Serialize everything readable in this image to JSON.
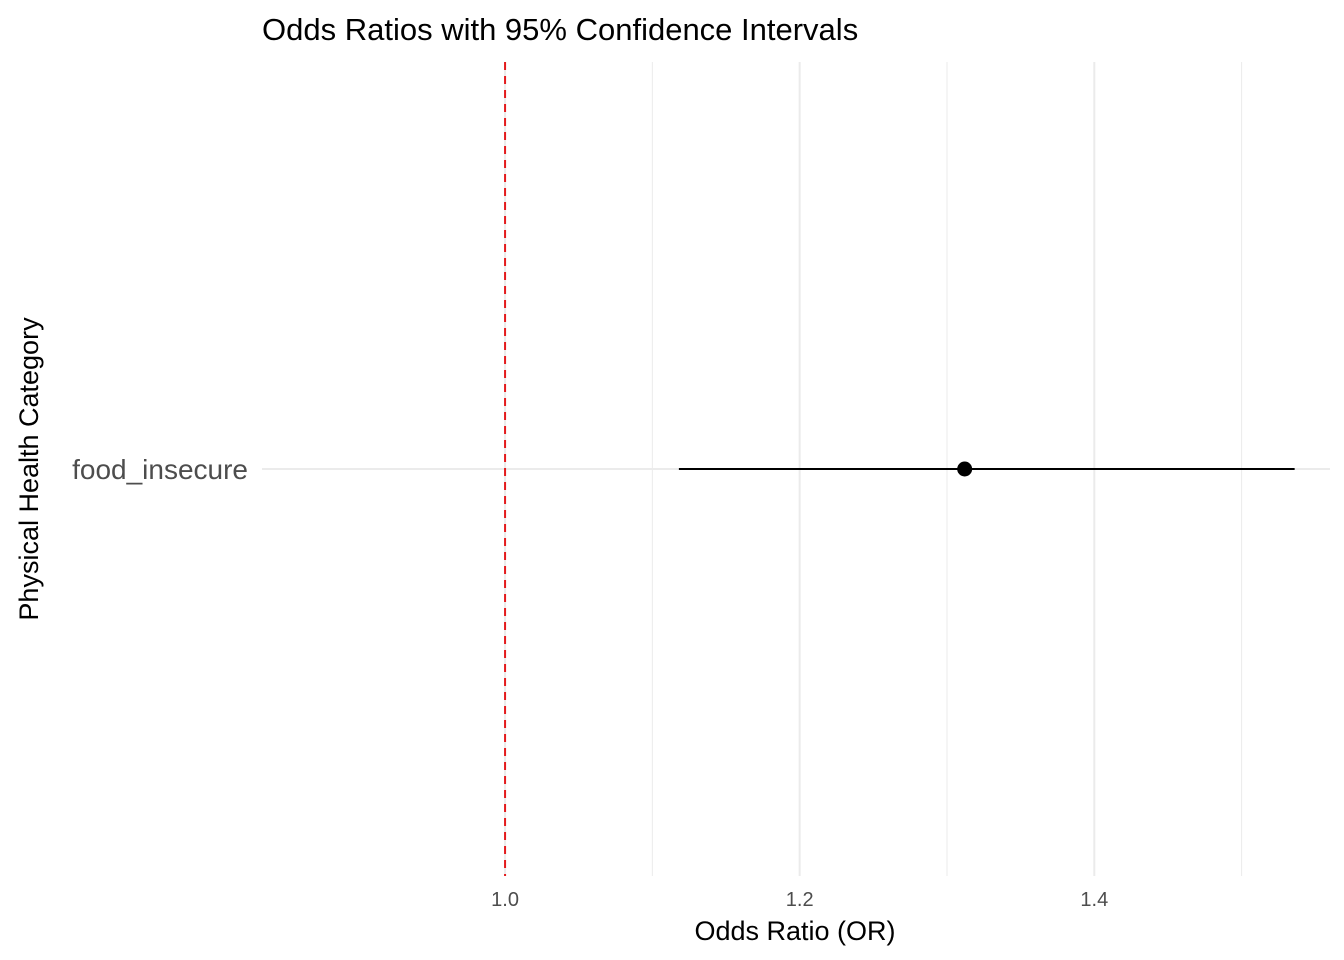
{
  "chart_data": {
    "type": "scatter",
    "title": "Odds Ratios with 95% Confidence Intervals",
    "xlabel": "Odds Ratio (OR)",
    "ylabel": "Physical Health Category",
    "xlim": [
      0.835,
      1.56
    ],
    "x_ticks": [
      1.0,
      1.2,
      1.4
    ],
    "x_tick_labels": [
      "1.0",
      "1.2",
      "1.4"
    ],
    "x_minor_ticks": [
      1.1,
      1.3,
      1.5
    ],
    "categories": [
      "food_insecure"
    ],
    "estimates": [
      {
        "category": "food_insecure",
        "or": 1.312,
        "ci_low": 1.118,
        "ci_high": 1.536
      }
    ],
    "reference_line": {
      "x": 1.0,
      "style": "dashed",
      "color": "#e41a1c"
    },
    "grid": true,
    "colors": {
      "point": "#000000",
      "interval": "#000000",
      "grid": "#ebebeb"
    }
  }
}
